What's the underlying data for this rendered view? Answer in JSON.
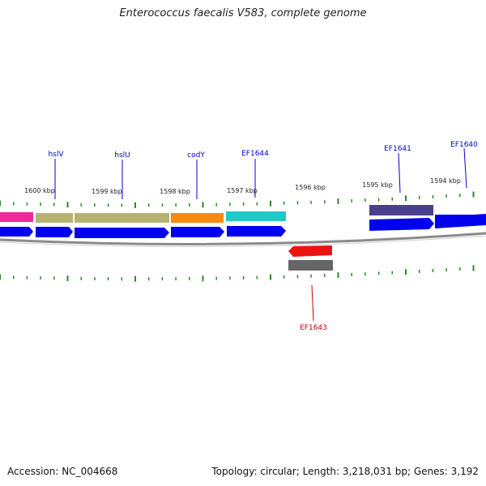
{
  "title": "Enterococcus faecalis V583, complete genome",
  "footer": {
    "accession": "Accession: NC_004668",
    "stats": "Topology: circular; Length: 3,218,031 bp; Genes: 3,192"
  },
  "colors": {
    "forward_cds": "#0000ee",
    "backbone": "#777777",
    "tick": "#2a8a2a",
    "gene_label": "#0000cc",
    "gene_label_reverse": "#cc0000"
  },
  "kbp_ticks": [
    "1600 kbp",
    "1599 kbp",
    "1598 kbp",
    "1597 kbp",
    "1596 kbp",
    "1595 kbp",
    "1594 kbp"
  ],
  "genes": [
    {
      "label": "",
      "color": "#ee2a9a"
    },
    {
      "label": "hslV",
      "color": "#b8b272"
    },
    {
      "label": "hslU",
      "color": "#b8b272"
    },
    {
      "label": "codY",
      "color": "#f58a12"
    },
    {
      "label": "EF1644",
      "color": "#22c8c8"
    },
    {
      "label": "EF1643",
      "color": "#ee1111"
    },
    {
      "label": "EF1641",
      "color": "#4a3f8a"
    },
    {
      "label": "EF1640",
      "color": "#0000ee"
    }
  ]
}
